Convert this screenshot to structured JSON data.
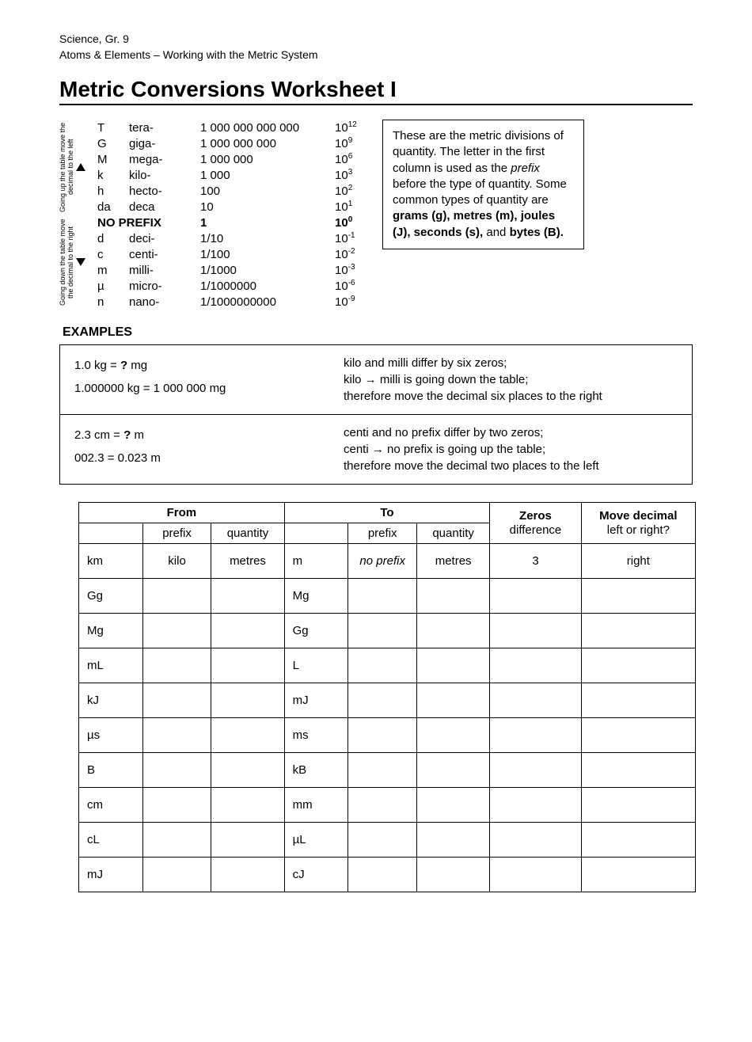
{
  "header": {
    "line1": "Science, Gr. 9",
    "line2": "Atoms & Elements – Working with the Metric System"
  },
  "title": "Metric Conversions Worksheet I",
  "side_labels": {
    "up": "Going up the table\nmove the decimal to\nthe  left",
    "down": "Going down the table\nmove the decimal to\nthe  right"
  },
  "prefix_table": {
    "rows": [
      {
        "sym": "T",
        "name": "tera-",
        "val": "1 000 000 000 000",
        "pow": "12"
      },
      {
        "sym": "G",
        "name": "giga-",
        "val": "1 000 000 000",
        "pow": "9"
      },
      {
        "sym": "M",
        "name": "mega-",
        "val": "1 000 000",
        "pow": "6"
      },
      {
        "sym": "k",
        "name": "kilo-",
        "val": "1 000",
        "pow": "3"
      },
      {
        "sym": "h",
        "name": "hecto-",
        "val": "100",
        "pow": "2"
      },
      {
        "sym": "da",
        "name": "deca",
        "val": "10",
        "pow": "1"
      },
      {
        "sym": "",
        "name": "NO PREFIX",
        "val": "1",
        "pow": "0",
        "noprefix": true
      },
      {
        "sym": "d",
        "name": "deci-",
        "val": "1/10",
        "pow": "-1"
      },
      {
        "sym": "c",
        "name": "centi-",
        "val": "1/100",
        "pow": "-2"
      },
      {
        "sym": "m",
        "name": "milli-",
        "val": "1/1000",
        "pow": "-3"
      },
      {
        "sym": "µ",
        "name": "micro-",
        "val": "1/1000000",
        "pow": "-6"
      },
      {
        "sym": "n",
        "name": "nano-",
        "val": "1/1000000000",
        "pow": "-9"
      }
    ]
  },
  "info_box": {
    "pre": "These are the metric divisions of quantity.   The letter in the first column is used as the ",
    "prefix_word": "prefix",
    "mid": " before the type of quantity.  Some common types of quantity are ",
    "bold_list": "grams (g), metres (m), joules (J), seconds (s),",
    "and_word": " and ",
    "bold_last": "bytes (B)."
  },
  "examples": {
    "title": "EXAMPLES",
    "rows": [
      {
        "q_line1_pre": "1.0 kg  =  ",
        "q_line1_bold": "?",
        "q_line1_post": " mg",
        "q_line2": "1.000000 kg  =  1 000 000 mg",
        "a_line1": "kilo and milli differ by six zeros;",
        "a_line2": "kilo → milli is going down the table;",
        "a_line3": "therefore move the decimal six places to the right"
      },
      {
        "q_line1_pre": "2.3 cm  =  ",
        "q_line1_bold": "?",
        "q_line1_post": " m",
        "q_line2": "002.3   =  0.023 m",
        "a_line1": "centi and no prefix differ by two zeros;",
        "a_line2": "centi → no prefix is going up the table;",
        "a_line3": "therefore move the decimal two places to the left"
      }
    ]
  },
  "worksheet": {
    "headers": {
      "from": "From",
      "to": "To",
      "zeros_l1": "Zeros",
      "zeros_l2": "difference",
      "move_l1": "Move decimal",
      "move_l2": "left or right?",
      "sub_prefix": "prefix",
      "sub_qty": "quantity"
    },
    "rows": [
      {
        "from_u": "km",
        "from_p": "kilo",
        "from_q": "metres",
        "to_u": "m",
        "to_p": "no prefix",
        "to_q": "metres",
        "zeros": "3",
        "move": "right",
        "to_p_italic": true
      },
      {
        "from_u": "Gg",
        "from_p": "",
        "from_q": "",
        "to_u": "Mg",
        "to_p": "",
        "to_q": "",
        "zeros": "",
        "move": ""
      },
      {
        "from_u": "Mg",
        "from_p": "",
        "from_q": "",
        "to_u": "Gg",
        "to_p": "",
        "to_q": "",
        "zeros": "",
        "move": ""
      },
      {
        "from_u": "mL",
        "from_p": "",
        "from_q": "",
        "to_u": "L",
        "to_p": "",
        "to_q": "",
        "zeros": "",
        "move": ""
      },
      {
        "from_u": "kJ",
        "from_p": "",
        "from_q": "",
        "to_u": "mJ",
        "to_p": "",
        "to_q": "",
        "zeros": "",
        "move": ""
      },
      {
        "from_u": "µs",
        "from_p": "",
        "from_q": "",
        "to_u": "ms",
        "to_p": "",
        "to_q": "",
        "zeros": "",
        "move": ""
      },
      {
        "from_u": "B",
        "from_p": "",
        "from_q": "",
        "to_u": "kB",
        "to_p": "",
        "to_q": "",
        "zeros": "",
        "move": ""
      },
      {
        "from_u": "cm",
        "from_p": "",
        "from_q": "",
        "to_u": "mm",
        "to_p": "",
        "to_q": "",
        "zeros": "",
        "move": ""
      },
      {
        "from_u": "cL",
        "from_p": "",
        "from_q": "",
        "to_u": "µL",
        "to_p": "",
        "to_q": "",
        "zeros": "",
        "move": ""
      },
      {
        "from_u": "mJ",
        "from_p": "",
        "from_q": "",
        "to_u": "cJ",
        "to_p": "",
        "to_q": "",
        "zeros": "",
        "move": ""
      }
    ]
  },
  "colors": {
    "text": "#000000",
    "bg": "#ffffff",
    "border": "#000000"
  }
}
